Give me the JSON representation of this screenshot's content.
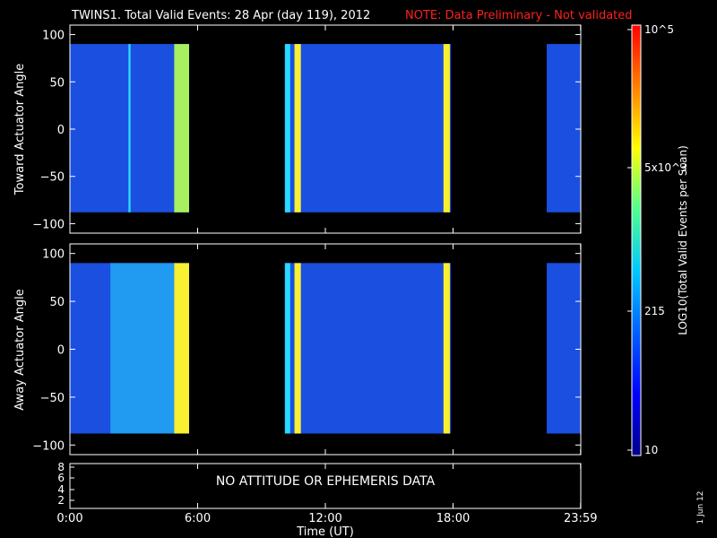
{
  "header": {
    "title": "TWINS1. Total Valid Events: 28 Apr (day 119), 2012",
    "note": "NOTE: Data Preliminary - Not validated",
    "note_color": "#ff2020"
  },
  "footer": {
    "xlabel": "Time (UT)",
    "stamp": "1 Jun 12"
  },
  "empty_panel": {
    "message": "NO ATTITUDE OR EPHEMERIS DATA",
    "yticks": [
      "8",
      "6",
      "4",
      "2"
    ]
  },
  "colorbar": {
    "label": "LOG10(Total Valid Events per Scan)",
    "ticks": [
      "10^5",
      "5x10^3",
      "215",
      "10"
    ],
    "colors": [
      "#00008c",
      "#0000ff",
      "#0060ff",
      "#00c8ff",
      "#50ff90",
      "#ffff00",
      "#ff8000",
      "#ff0000"
    ]
  },
  "chart_data": [
    {
      "type": "heatmap",
      "ylabel": "Toward Actuator Angle",
      "ylim": [
        -110,
        110
      ],
      "yticks": [
        100,
        50,
        0,
        -50,
        -100
      ],
      "xticks": [
        "0:00",
        "6:00",
        "12:00",
        "18:00",
        "23:59"
      ],
      "data_rows_deg": [
        -88,
        90
      ],
      "coverage_hours": [
        [
          0.0,
          5.6
        ],
        [
          10.1,
          17.9
        ],
        [
          22.4,
          23.99
        ]
      ],
      "bright_bands": [
        {
          "hours": [
            2.75,
            2.85
          ],
          "level": "cyan"
        },
        {
          "hours": [
            4.9,
            5.6
          ],
          "level": "green-yellow"
        },
        {
          "hours": [
            10.1,
            10.35
          ],
          "level": "cyan"
        },
        {
          "hours": [
            10.55,
            10.85
          ],
          "level": "yellow"
        },
        {
          "hours": [
            17.55,
            17.85
          ],
          "level": "yellow"
        }
      ],
      "background_level": "blue"
    },
    {
      "type": "heatmap",
      "ylabel": "Away Actuator Angle",
      "ylim": [
        -110,
        110
      ],
      "yticks": [
        100,
        50,
        0,
        -50,
        -100
      ],
      "xticks": [
        "0:00",
        "6:00",
        "12:00",
        "18:00",
        "23:59"
      ],
      "data_rows_deg": [
        -88,
        90
      ],
      "coverage_hours": [
        [
          0.0,
          5.6
        ],
        [
          10.1,
          17.9
        ],
        [
          22.4,
          23.99
        ]
      ],
      "bright_bands": [
        {
          "hours": [
            1.9,
            4.9
          ],
          "level": "cyan"
        },
        {
          "hours": [
            4.9,
            5.6
          ],
          "level": "yellow"
        },
        {
          "hours": [
            10.1,
            10.35
          ],
          "level": "cyan"
        },
        {
          "hours": [
            10.55,
            10.85
          ],
          "level": "yellow"
        },
        {
          "hours": [
            17.55,
            17.85
          ],
          "level": "yellow"
        }
      ],
      "background_level": "blue"
    }
  ]
}
